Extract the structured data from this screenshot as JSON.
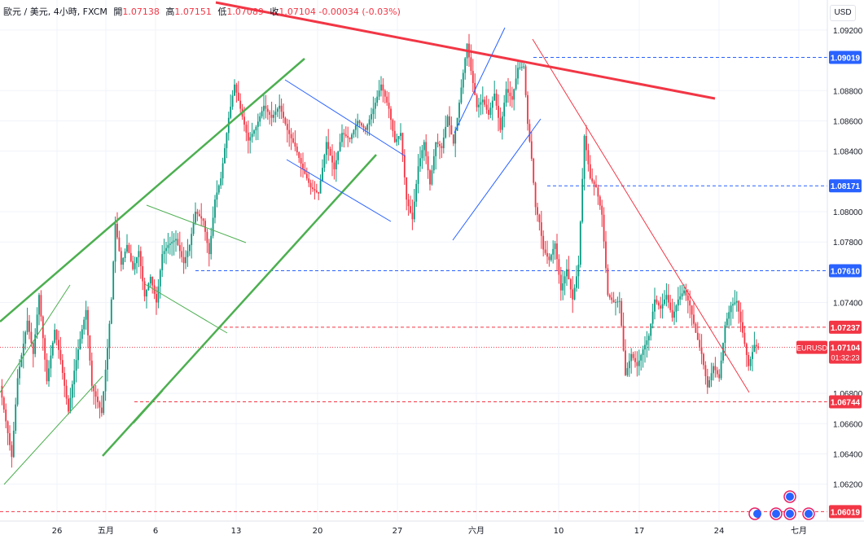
{
  "header": {
    "symbol": "歐元 / 美元, 4小時, FXCM",
    "open_label": "開",
    "open": "1.07138",
    "high_label": "高",
    "high": "1.07151",
    "low_label": "低",
    "low": "1.07089",
    "close_label": "收",
    "close": "1.07104",
    "change": "-0.00034 (-0.03%)"
  },
  "currency_button": "USD",
  "colors": {
    "up": "#089981",
    "down": "#f23645",
    "trend_green": "#4caf50",
    "resistance_red": "#f23645",
    "channel_blue": "#2962ff",
    "level_blue": "#2962ff"
  },
  "chart_data": {
    "type": "candlestick",
    "symbol": "EURUSD",
    "timeframe": "4小時",
    "ylim": [
      1.0601,
      1.0935
    ],
    "y_ticks": [
      "1.09200",
      "1.08800",
      "1.08600",
      "1.08400",
      "1.08000",
      "1.07800",
      "1.07400",
      "1.06800",
      "1.06600",
      "1.06400",
      "1.06200"
    ],
    "x_ticks": [
      "26",
      "五月",
      "6",
      "13",
      "20",
      "27",
      "六月",
      "10",
      "17",
      "24",
      "七月"
    ],
    "price_labels": [
      {
        "value": "1.09019",
        "color": "#2962ff"
      },
      {
        "value": "1.08171",
        "color": "#2962ff"
      },
      {
        "value": "1.07610",
        "color": "#2962ff"
      },
      {
        "value": "1.07237",
        "color": "#f23645"
      },
      {
        "value": "1.06744",
        "color": "#f23645"
      },
      {
        "value": "1.06019",
        "color": "#f23645"
      }
    ],
    "current": {
      "symbol": "EURUSD",
      "price": "1.07104",
      "countdown": "01:32:23"
    },
    "horizontal_levels": [
      {
        "price": 1.09019,
        "style": "dashed",
        "color": "#2962ff"
      },
      {
        "price": 1.08171,
        "style": "dashed",
        "color": "#2962ff"
      },
      {
        "price": 1.0761,
        "style": "dashed",
        "color": "#2962ff"
      },
      {
        "price": 1.07237,
        "style": "dashed",
        "color": "#f23645"
      },
      {
        "price": 1.06744,
        "style": "dashed",
        "color": "#f23645"
      },
      {
        "price": 1.06019,
        "style": "dashed",
        "color": "#f23645"
      },
      {
        "price": 1.07104,
        "style": "dotted",
        "color": "#f23645"
      }
    ],
    "pivots": [
      [
        0,
        1.0685
      ],
      [
        6,
        1.0638
      ],
      [
        9,
        1.069
      ],
      [
        14,
        1.0728
      ],
      [
        17,
        1.0706
      ],
      [
        20,
        1.0745
      ],
      [
        24,
        1.0688
      ],
      [
        28,
        1.0722
      ],
      [
        31,
        1.0702
      ],
      [
        35,
        1.0668
      ],
      [
        38,
        1.0695
      ],
      [
        41,
        1.0716
      ],
      [
        44,
        1.0735
      ],
      [
        47,
        1.0685
      ],
      [
        52,
        1.0667
      ],
      [
        55,
        1.071
      ],
      [
        57,
        1.0742
      ],
      [
        59,
        1.0792
      ],
      [
        62,
        1.0765
      ],
      [
        65,
        1.0778
      ],
      [
        68,
        1.0762
      ],
      [
        71,
        1.0774
      ],
      [
        74,
        1.0744
      ],
      [
        77,
        1.0757
      ],
      [
        80,
        1.074
      ],
      [
        83,
        1.0772
      ],
      [
        86,
        1.0778
      ],
      [
        90,
        1.0782
      ],
      [
        94,
        1.0766
      ],
      [
        97,
        1.0778
      ],
      [
        100,
        1.08
      ],
      [
        104,
        1.0794
      ],
      [
        107,
        1.0772
      ],
      [
        110,
        1.0808
      ],
      [
        113,
        1.0822
      ],
      [
        117,
        1.0862
      ],
      [
        120,
        1.0884
      ],
      [
        123,
        1.0868
      ],
      [
        127,
        1.0847
      ],
      [
        131,
        1.0856
      ],
      [
        135,
        1.087
      ],
      [
        139,
        1.0862
      ],
      [
        143,
        1.087
      ],
      [
        147,
        1.0854
      ],
      [
        151,
        1.0843
      ],
      [
        155,
        1.0828
      ],
      [
        159,
        1.0816
      ],
      [
        163,
        1.0812
      ],
      [
        167,
        1.0846
      ],
      [
        171,
        1.0828
      ],
      [
        175,
        1.0852
      ],
      [
        179,
        1.0848
      ],
      [
        183,
        1.086
      ],
      [
        187,
        1.0854
      ],
      [
        191,
        1.0868
      ],
      [
        195,
        1.0884
      ],
      [
        199,
        1.0868
      ],
      [
        202,
        1.0846
      ],
      [
        205,
        1.0852
      ],
      [
        208,
        1.0808
      ],
      [
        211,
        1.0795
      ],
      [
        214,
        1.083
      ],
      [
        217,
        1.0846
      ],
      [
        220,
        1.0818
      ],
      [
        223,
        1.0846
      ],
      [
        226,
        1.0842
      ],
      [
        229,
        1.0863
      ],
      [
        232,
        1.0845
      ],
      [
        234,
        1.0862
      ],
      [
        236,
        1.0882
      ],
      [
        239,
        1.0911
      ],
      [
        241,
        1.0893
      ],
      [
        244,
        1.0869
      ],
      [
        247,
        1.0874
      ],
      [
        250,
        1.0864
      ],
      [
        253,
        1.0878
      ],
      [
        256,
        1.0854
      ],
      [
        259,
        1.0881
      ],
      [
        262,
        1.0874
      ],
      [
        265,
        1.0895
      ],
      [
        268,
        1.0896
      ],
      [
        270,
        1.0858
      ],
      [
        272,
        1.0835
      ],
      [
        274,
        1.0803
      ],
      [
        276,
        1.0793
      ],
      [
        278,
        1.0775
      ],
      [
        281,
        1.0768
      ],
      [
        284,
        1.0779
      ],
      [
        287,
        1.0748
      ],
      [
        290,
        1.0762
      ],
      [
        293,
        1.0742
      ],
      [
        296,
        1.0765
      ],
      [
        299,
        1.085
      ],
      [
        302,
        1.0822
      ],
      [
        305,
        1.0816
      ],
      [
        308,
        1.0798
      ],
      [
        311,
        1.0745
      ],
      [
        314,
        1.074
      ],
      [
        317,
        1.0741
      ],
      [
        320,
        1.0692
      ],
      [
        323,
        1.0706
      ],
      [
        326,
        1.0698
      ],
      [
        329,
        1.0709
      ],
      [
        332,
        1.0718
      ],
      [
        335,
        1.0742
      ],
      [
        338,
        1.0736
      ],
      [
        341,
        1.0745
      ],
      [
        344,
        1.073
      ],
      [
        347,
        1.0742
      ],
      [
        350,
        1.0748
      ],
      [
        353,
        1.0738
      ],
      [
        356,
        1.072
      ],
      [
        359,
        1.0706
      ],
      [
        362,
        1.0684
      ],
      [
        365,
        1.0698
      ],
      [
        368,
        1.069
      ],
      [
        371,
        1.0725
      ],
      [
        374,
        1.0738
      ],
      [
        377,
        1.0741
      ],
      [
        380,
        1.072
      ],
      [
        383,
        1.0698
      ],
      [
        386,
        1.0712
      ],
      [
        388,
        1.071
      ]
    ]
  }
}
